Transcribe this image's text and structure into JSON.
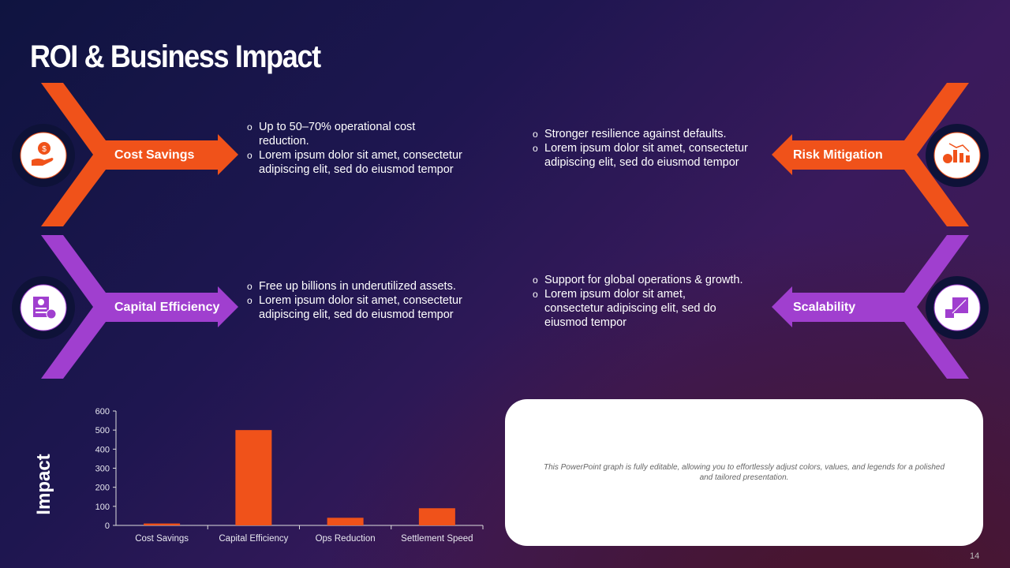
{
  "title": "ROI & Business Impact",
  "page_number": "14",
  "colors": {
    "orange": "#f0521a",
    "purple": "#a03fcf",
    "navy": "#0e1238"
  },
  "sections": [
    {
      "label": "Cost Savings",
      "icon": "money-hand-icon",
      "bullets": [
        "Up to 50–70% operational cost reduction.",
        "Lorem ipsum dolor sit amet, consectetur adipiscing elit, sed do eiusmod tempor"
      ]
    },
    {
      "label": "Risk Mitigation",
      "icon": "risk-chart-gear-icon",
      "bullets": [
        "Stronger resilience against defaults.",
        "Lorem ipsum dolor sit amet, consectetur adipiscing elit, sed do eiusmod tempor"
      ]
    },
    {
      "label": "Capital Efficiency",
      "icon": "clipboard-percent-icon",
      "bullets": [
        "Free up billions in underutilized assets.",
        "Lorem ipsum dolor sit amet, consectetur adipiscing elit, sed do eiusmod tempor"
      ]
    },
    {
      "label": "Scalability",
      "icon": "scale-resize-icon",
      "bullets": [
        "Support for global operations & growth.",
        "Lorem ipsum dolor sit amet, consectetur adipiscing elit, sed do eiusmod tempor"
      ]
    }
  ],
  "note": "This PowerPoint graph is fully editable, allowing you to effortlessly adjust colors, values, and legends for a polished and tailored presentation.",
  "chart_data": {
    "type": "bar",
    "categories": [
      "Cost Savings",
      "Capital Efficiency",
      "Ops Reduction",
      "Settlement Speed"
    ],
    "values": [
      10,
      500,
      40,
      90
    ],
    "title": "",
    "xlabel": "",
    "ylabel": "Impact",
    "ylim": [
      0,
      600
    ],
    "yticks": [
      0,
      100,
      200,
      300,
      400,
      500,
      600
    ],
    "bar_color": "#f0521a",
    "grid": false
  }
}
